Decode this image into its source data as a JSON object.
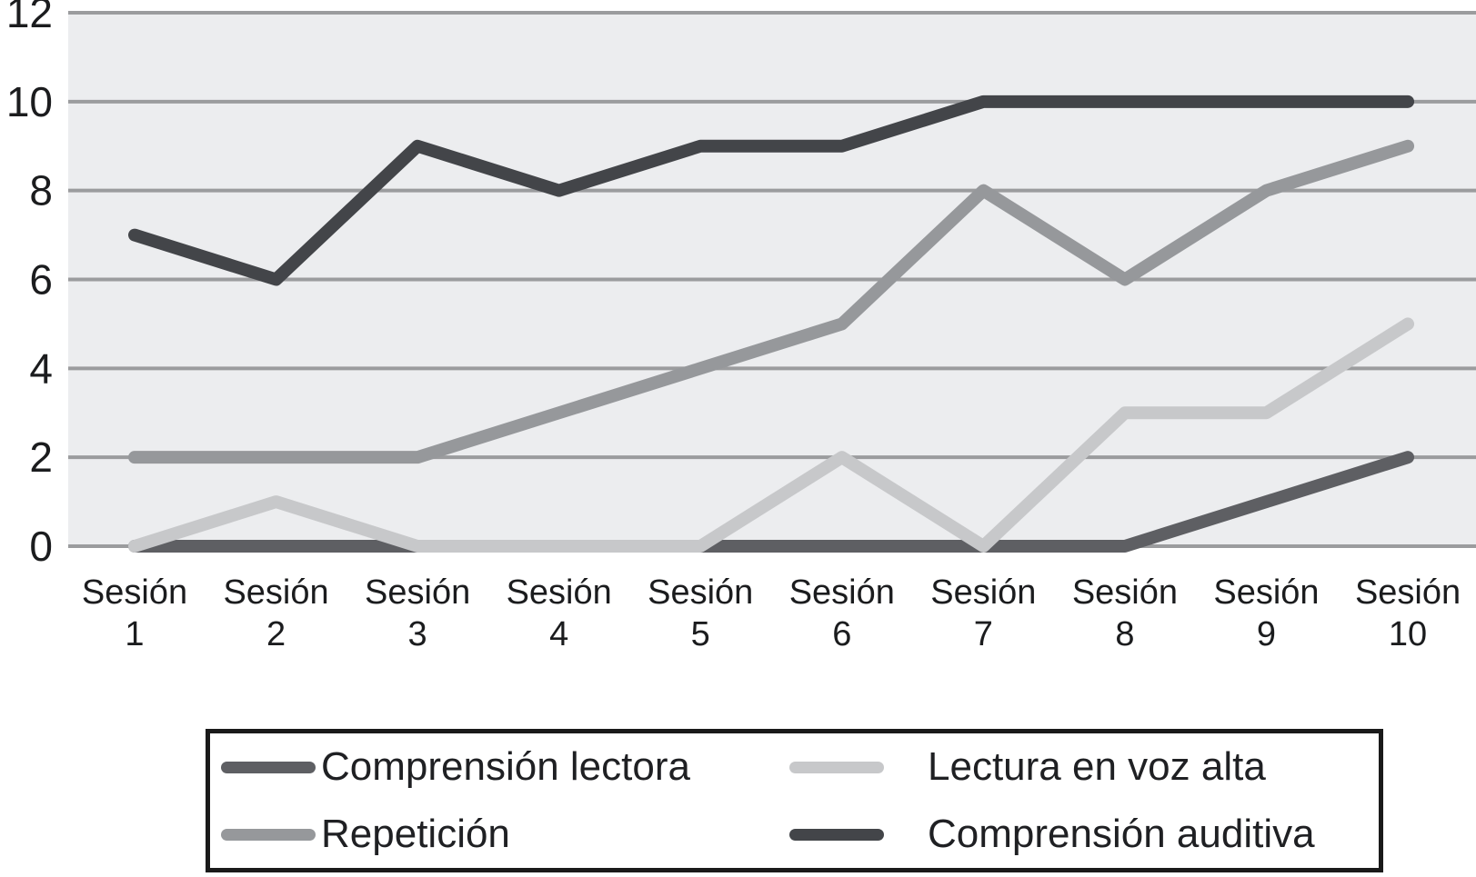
{
  "chart_data": {
    "type": "line",
    "title": "",
    "xlabel": "",
    "ylabel": "",
    "categories": [
      "Sesión 1",
      "Sesión 2",
      "Sesión 3",
      "Sesión 4",
      "Sesión 5",
      "Sesión 6",
      "Sesión 7",
      "Sesión 8",
      "Sesión 9",
      "Sesión 10"
    ],
    "series": [
      {
        "name": "Comprensión lectora",
        "color": "#5e5f63",
        "values": [
          0,
          0,
          0,
          0,
          0,
          0,
          0,
          0,
          1,
          2
        ]
      },
      {
        "name": "Lectura en voz alta",
        "color": "#c7c8ca",
        "values": [
          0,
          1,
          0,
          0,
          0,
          2,
          0,
          3,
          3,
          5
        ]
      },
      {
        "name": "Repetición",
        "color": "#96989b",
        "values": [
          2,
          2,
          2,
          3,
          4,
          5,
          8,
          6,
          8,
          9
        ]
      },
      {
        "name": "Comprensión auditiva",
        "color": "#434549",
        "values": [
          7,
          6,
          9,
          8,
          9,
          9,
          10,
          10,
          10,
          10
        ]
      }
    ],
    "y_ticks": [
      0,
      2,
      4,
      6,
      8,
      10,
      12
    ],
    "ylim": [
      0,
      12
    ],
    "grid": true,
    "legend_position": "bottom",
    "plot_bg_color": "#ecedef",
    "grid_color": "#9b9c9e"
  },
  "legend": {
    "items": [
      {
        "label": "Comprensión lectora",
        "color": "#5e5f63"
      },
      {
        "label": "Lectura en voz alta",
        "color": "#c7c8ca"
      },
      {
        "label": "Repetición",
        "color": "#96989b"
      },
      {
        "label": "Comprensión auditiva",
        "color": "#434549"
      }
    ]
  }
}
